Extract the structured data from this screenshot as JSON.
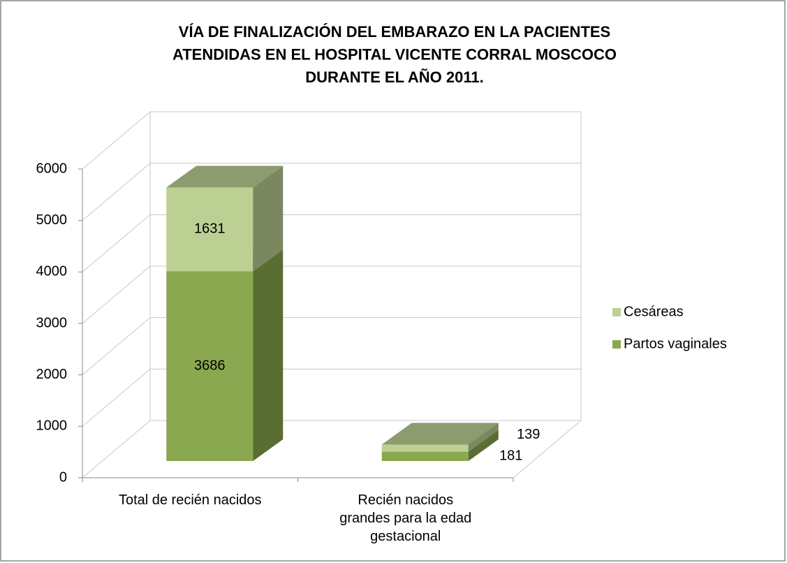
{
  "chart_data": {
    "type": "bar3d_stacked",
    "title": "VÍA DE FINALIZACIÓN DEL EMBARAZO EN LA PACIENTES ATENDIDAS EN EL HOSPITAL VICENTE CORRAL MOSCOCO DURANTE EL AÑO 2011.",
    "categories": [
      "Total de recién nacidos",
      "Recién nacidos grandes para la edad gestacional"
    ],
    "series": [
      {
        "name": "Partos vaginales",
        "color": "#8aa84f",
        "values": [
          3686,
          181
        ]
      },
      {
        "name": "Cesáreas",
        "color": "#bcd094",
        "values": [
          1631,
          139
        ]
      }
    ],
    "ylim": [
      0,
      6000
    ],
    "yticks": [
      0,
      1000,
      2000,
      3000,
      4000,
      5000,
      6000
    ],
    "grid": true,
    "legend": "right"
  }
}
